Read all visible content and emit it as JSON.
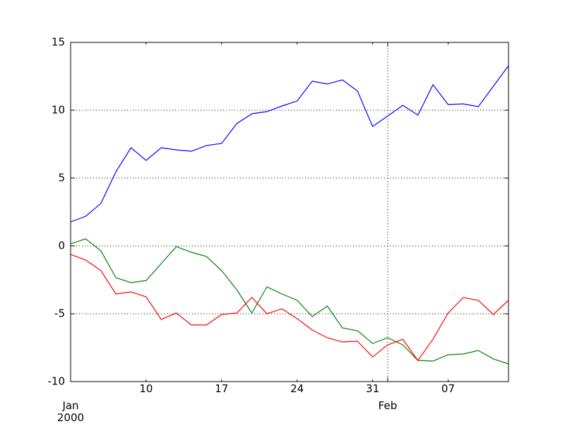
{
  "chart_data": {
    "type": "line",
    "x": [
      "2000-01-03",
      "2000-01-04",
      "2000-01-05",
      "2000-01-06",
      "2000-01-07",
      "2000-01-10",
      "2000-01-11",
      "2000-01-12",
      "2000-01-13",
      "2000-01-14",
      "2000-01-17",
      "2000-01-18",
      "2000-01-19",
      "2000-01-20",
      "2000-01-21",
      "2000-01-24",
      "2000-01-25",
      "2000-01-26",
      "2000-01-27",
      "2000-01-28",
      "2000-01-31",
      "2000-02-01",
      "2000-02-02",
      "2000-02-03",
      "2000-02-04",
      "2000-02-07",
      "2000-02-08",
      "2000-02-09",
      "2000-02-10",
      "2000-02-11"
    ],
    "series": [
      {
        "color": "#0000ff",
        "values": [
          1.77,
          2.19,
          3.13,
          5.47,
          7.24,
          6.3,
          7.24,
          7.08,
          6.98,
          7.4,
          7.55,
          9.01,
          9.74,
          9.9,
          10.31,
          10.68,
          12.14,
          11.93,
          12.24,
          11.41,
          8.8,
          9.58,
          10.36,
          9.64,
          11.88,
          10.42,
          10.47,
          10.26,
          11.77,
          13.28
        ]
      },
      {
        "color": "#008000",
        "values": [
          0.16,
          0.52,
          -0.36,
          -2.34,
          -2.71,
          -2.55,
          -1.3,
          -0.05,
          -0.47,
          -0.78,
          -1.82,
          -3.23,
          -4.95,
          -3.02,
          -3.54,
          -4.01,
          -5.21,
          -4.43,
          -6.04,
          -6.25,
          -7.19,
          -6.77,
          -7.29,
          -8.44,
          -8.49,
          -8.02,
          -7.97,
          -7.71,
          -8.33,
          -8.7
        ]
      },
      {
        "color": "#ff0000",
        "values": [
          -0.63,
          -1.04,
          -1.82,
          -3.54,
          -3.39,
          -3.75,
          -5.42,
          -4.95,
          -5.83,
          -5.83,
          -5.05,
          -4.95,
          -3.8,
          -5.0,
          -4.64,
          -5.36,
          -6.2,
          -6.77,
          -7.08,
          -7.03,
          -8.18,
          -7.29,
          -6.88,
          -8.44,
          -6.88,
          -4.95,
          -3.8,
          -4.01,
          -5.05,
          -4.01
        ]
      }
    ],
    "xlim": [
      "2000-01-03",
      "2000-02-11"
    ],
    "xticks": [
      {
        "value": "2000-01-03",
        "label": "Jan\n2000",
        "major": true
      },
      {
        "value": "2000-01-10",
        "label": "10"
      },
      {
        "value": "2000-01-17",
        "label": "17"
      },
      {
        "value": "2000-01-24",
        "label": "24"
      },
      {
        "value": "2000-01-31",
        "label": "31"
      },
      {
        "value": "2000-02-01",
        "label": "Feb",
        "major": true
      },
      {
        "value": "2000-02-07",
        "label": "07"
      }
    ],
    "ylim": [
      -10,
      15
    ],
    "yticks": [
      -10,
      -5,
      0,
      5,
      10,
      15
    ],
    "grid": true
  }
}
